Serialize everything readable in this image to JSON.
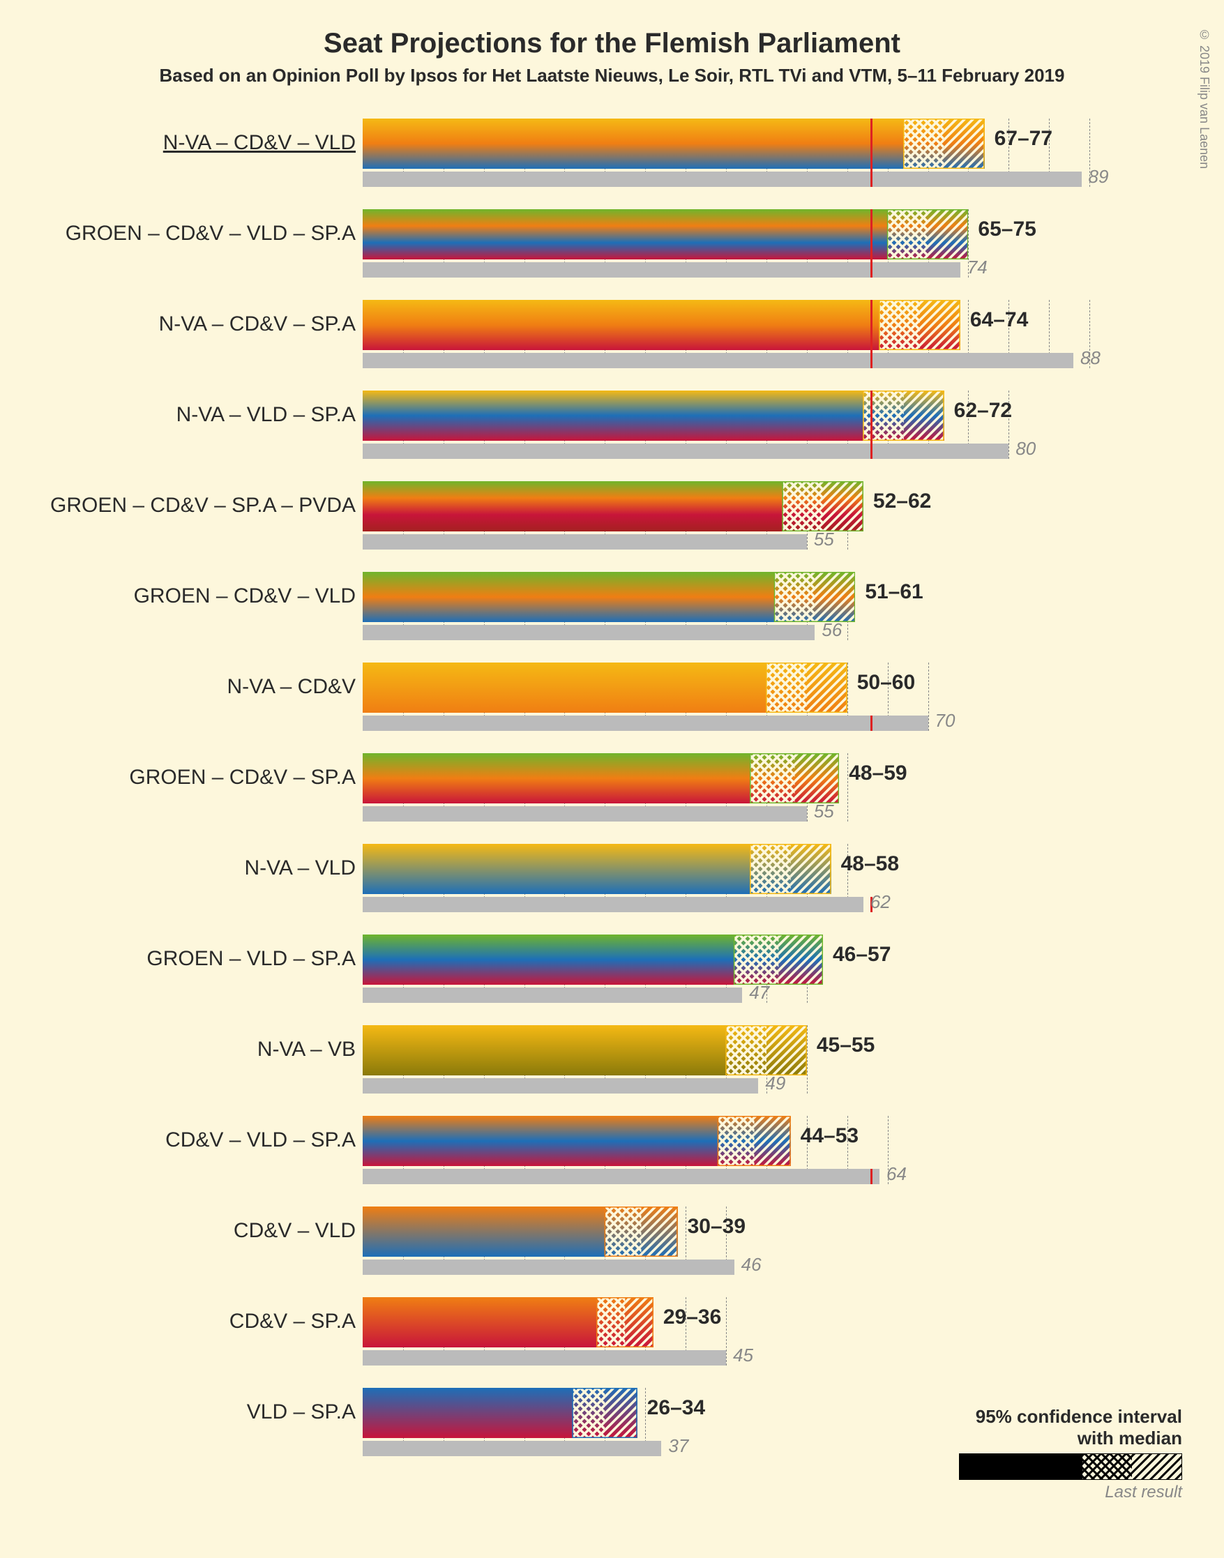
{
  "title": "Seat Projections for the Flemish Parliament",
  "subtitle": "Based on an Opinion Poll by Ipsos for Het Laatste Nieuws, Le Soir, RTL TVi and VTM, 5–11 February 2019",
  "copyright": "© 2019 Filip van Laenen",
  "background_color": "#fdf7dc",
  "xmax": 95,
  "majority": 63,
  "grid_step": 5,
  "party_colors": {
    "N-VA": "#f5b914",
    "CD&V": "#f07e13",
    "VLD": "#1d6fb8",
    "SP.A": "#c8153a",
    "GROEN": "#6fb52c",
    "VB": "#8a7a0a",
    "PVDA": "#a52020"
  },
  "rows": [
    {
      "label": "N-VA – CD&V – VLD",
      "parties": [
        "N-VA",
        "CD&V",
        "VLD"
      ],
      "lo": 67,
      "hi": 77,
      "last": 89,
      "underline": true
    },
    {
      "label": "GROEN – CD&V – VLD – SP.A",
      "parties": [
        "GROEN",
        "CD&V",
        "VLD",
        "SP.A"
      ],
      "lo": 65,
      "hi": 75,
      "last": 74
    },
    {
      "label": "N-VA – CD&V – SP.A",
      "parties": [
        "N-VA",
        "CD&V",
        "SP.A"
      ],
      "lo": 64,
      "hi": 74,
      "last": 88
    },
    {
      "label": "N-VA – VLD – SP.A",
      "parties": [
        "N-VA",
        "VLD",
        "SP.A"
      ],
      "lo": 62,
      "hi": 72,
      "last": 80
    },
    {
      "label": "GROEN – CD&V – SP.A – PVDA",
      "parties": [
        "GROEN",
        "CD&V",
        "SP.A",
        "PVDA"
      ],
      "lo": 52,
      "hi": 62,
      "last": 55
    },
    {
      "label": "GROEN – CD&V – VLD",
      "parties": [
        "GROEN",
        "CD&V",
        "VLD"
      ],
      "lo": 51,
      "hi": 61,
      "last": 56
    },
    {
      "label": "N-VA – CD&V",
      "parties": [
        "N-VA",
        "CD&V"
      ],
      "lo": 50,
      "hi": 60,
      "last": 70
    },
    {
      "label": "GROEN – CD&V – SP.A",
      "parties": [
        "GROEN",
        "CD&V",
        "SP.A"
      ],
      "lo": 48,
      "hi": 59,
      "last": 55
    },
    {
      "label": "N-VA – VLD",
      "parties": [
        "N-VA",
        "VLD"
      ],
      "lo": 48,
      "hi": 58,
      "last": 62
    },
    {
      "label": "GROEN – VLD – SP.A",
      "parties": [
        "GROEN",
        "VLD",
        "SP.A"
      ],
      "lo": 46,
      "hi": 57,
      "last": 47
    },
    {
      "label": "N-VA – VB",
      "parties": [
        "N-VA",
        "VB"
      ],
      "lo": 45,
      "hi": 55,
      "last": 49
    },
    {
      "label": "CD&V – VLD – SP.A",
      "parties": [
        "CD&V",
        "VLD",
        "SP.A"
      ],
      "lo": 44,
      "hi": 53,
      "last": 64
    },
    {
      "label": "CD&V – VLD",
      "parties": [
        "CD&V",
        "VLD"
      ],
      "lo": 30,
      "hi": 39,
      "last": 46
    },
    {
      "label": "CD&V – SP.A",
      "parties": [
        "CD&V",
        "SP.A"
      ],
      "lo": 29,
      "hi": 36,
      "last": 45
    },
    {
      "label": "VLD – SP.A",
      "parties": [
        "VLD",
        "SP.A"
      ],
      "lo": 26,
      "hi": 34,
      "last": 37
    }
  ],
  "legend": {
    "line1": "95% confidence interval",
    "line2": "with median",
    "last_label": "Last result"
  }
}
